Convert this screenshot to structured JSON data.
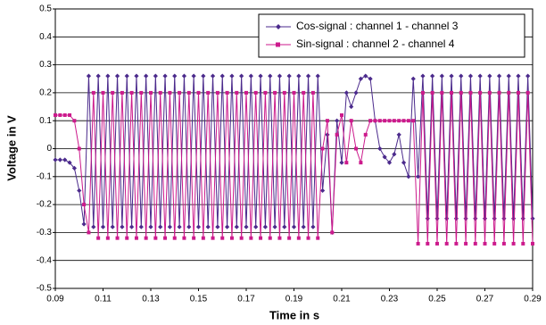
{
  "chart_data": {
    "type": "line",
    "x_label": "Time in s",
    "y_label": "Voltage in V",
    "x": [
      0.09,
      0.092,
      0.094,
      0.096,
      0.098,
      0.1,
      0.102,
      0.104,
      0.106,
      0.108,
      0.11,
      0.112,
      0.114,
      0.116,
      0.118,
      0.12,
      0.122,
      0.124,
      0.126,
      0.128,
      0.13,
      0.132,
      0.134,
      0.136,
      0.138,
      0.14,
      0.142,
      0.144,
      0.146,
      0.148,
      0.15,
      0.152,
      0.154,
      0.156,
      0.158,
      0.16,
      0.162,
      0.164,
      0.166,
      0.168,
      0.17,
      0.172,
      0.174,
      0.176,
      0.178,
      0.18,
      0.182,
      0.184,
      0.186,
      0.188,
      0.19,
      0.192,
      0.194,
      0.196,
      0.198,
      0.2,
      0.202,
      0.204,
      0.206,
      0.208,
      0.21,
      0.212,
      0.214,
      0.216,
      0.218,
      0.22,
      0.222,
      0.224,
      0.226,
      0.228,
      0.23,
      0.232,
      0.234,
      0.236,
      0.238,
      0.24,
      0.242,
      0.244,
      0.246,
      0.248,
      0.25,
      0.252,
      0.254,
      0.256,
      0.258,
      0.26,
      0.262,
      0.264,
      0.266,
      0.268,
      0.27,
      0.272,
      0.274,
      0.276,
      0.278,
      0.28,
      0.282,
      0.284,
      0.286,
      0.288,
      0.29
    ],
    "series": [
      {
        "name": "Cos-signal : channel 1 - channel 3",
        "color": "#4b2a8c",
        "marker": "diamond",
        "values": [
          -0.04,
          -0.04,
          -0.04,
          -0.05,
          -0.07,
          -0.15,
          -0.27,
          0.26,
          -0.28,
          0.26,
          -0.28,
          0.26,
          -0.28,
          0.26,
          -0.28,
          0.26,
          -0.28,
          0.26,
          -0.28,
          0.26,
          -0.28,
          0.26,
          -0.28,
          0.26,
          -0.28,
          0.26,
          -0.28,
          0.26,
          -0.28,
          0.26,
          -0.28,
          0.26,
          -0.28,
          0.26,
          -0.28,
          0.26,
          -0.28,
          0.26,
          -0.28,
          0.26,
          -0.28,
          0.26,
          -0.28,
          0.26,
          -0.28,
          0.26,
          -0.28,
          0.26,
          -0.28,
          0.26,
          -0.28,
          0.26,
          -0.28,
          0.26,
          -0.28,
          0.26,
          -0.15,
          0.05,
          -0.3,
          0.1,
          -0.05,
          0.2,
          0.15,
          0.2,
          0.25,
          0.26,
          0.25,
          0.1,
          0,
          -0.03,
          -0.05,
          -0.02,
          0.05,
          -0.05,
          -0.1,
          0.25,
          -0.1,
          0.26,
          -0.25,
          0.26,
          -0.25,
          0.26,
          -0.25,
          0.26,
          -0.25,
          0.26,
          -0.25,
          0.26,
          -0.25,
          0.26,
          -0.25,
          0.26,
          -0.25,
          0.26,
          -0.25,
          0.26,
          -0.25,
          0.26,
          -0.25,
          0.26,
          -0.25
        ]
      },
      {
        "name": "Sin-signal : channel 2 - channel 4",
        "color": "#cc1a8c",
        "marker": "square",
        "values": [
          0.12,
          0.12,
          0.12,
          0.12,
          0.1,
          0,
          -0.2,
          -0.3,
          0.2,
          -0.32,
          0.2,
          -0.32,
          0.2,
          -0.32,
          0.2,
          -0.32,
          0.2,
          -0.32,
          0.2,
          -0.32,
          0.2,
          -0.32,
          0.2,
          -0.32,
          0.2,
          -0.32,
          0.2,
          -0.32,
          0.2,
          -0.32,
          0.2,
          -0.32,
          0.2,
          -0.32,
          0.2,
          -0.32,
          0.2,
          -0.32,
          0.2,
          -0.32,
          0.2,
          -0.32,
          0.2,
          -0.32,
          0.2,
          -0.32,
          0.2,
          -0.32,
          0.2,
          -0.32,
          0.2,
          -0.32,
          0.2,
          -0.32,
          0.2,
          -0.32,
          0,
          0.1,
          -0.3,
          0.05,
          0.12,
          -0.05,
          0.1,
          0,
          -0.05,
          0.05,
          0.1,
          0.1,
          0.1,
          0.1,
          0.1,
          0.1,
          0.1,
          0.1,
          0.1,
          0.1,
          -0.34,
          0.2,
          -0.34,
          0.2,
          -0.34,
          0.2,
          -0.34,
          0.2,
          -0.34,
          0.2,
          -0.34,
          0.2,
          -0.34,
          0.2,
          -0.34,
          0.2,
          -0.34,
          0.2,
          -0.34,
          0.2,
          -0.34,
          0.2,
          -0.34,
          0.2,
          -0.34
        ]
      }
    ],
    "xlim": [
      0.09,
      0.29
    ],
    "xticks": [
      0.09,
      0.11,
      0.13,
      0.15,
      0.17,
      0.19,
      0.21,
      0.23,
      0.25,
      0.27,
      0.29
    ],
    "ylim": [
      -0.5,
      0.5
    ],
    "yticks": [
      -0.5,
      -0.4,
      -0.3,
      -0.2,
      -0.1,
      0,
      0.1,
      0.2,
      0.3,
      0.4,
      0.5
    ],
    "grid": true,
    "legend": "top-right"
  }
}
